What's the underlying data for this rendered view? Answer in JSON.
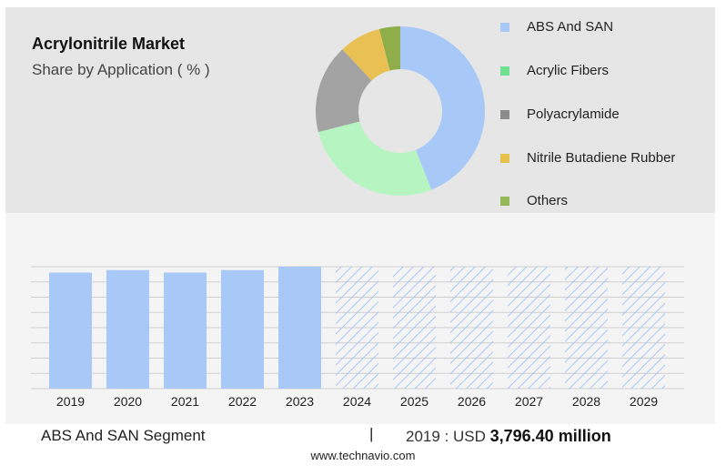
{
  "title": "Acrylonitrile Market",
  "subtitle": "Share by Application ( % )",
  "legend": [
    {
      "label": "ABS And SAN",
      "color": "#a8c8f8"
    },
    {
      "label": "Acrylic Fibers",
      "color": "#6fe08f"
    },
    {
      "label": "Polyacrylamide",
      "color": "#8c8c8c"
    },
    {
      "label": "Nitrile Butadiene Rubber",
      "color": "#e5c04a"
    },
    {
      "label": "Others",
      "color": "#93b85a"
    }
  ],
  "chart_data": [
    {
      "type": "pie",
      "donut": true,
      "labels": [
        "ABS And SAN",
        "Acrylic Fibers",
        "Polyacrylamide",
        "Nitrile Butadiene Rubber",
        "Others"
      ],
      "values": [
        44,
        27,
        17,
        8,
        4
      ],
      "colors": [
        "#a8c8f8",
        "#b6f4c1",
        "#a3a3a3",
        "#e9c054",
        "#8fae49"
      ]
    },
    {
      "type": "bar",
      "categories": [
        "2019",
        "2020",
        "2021",
        "2022",
        "2023",
        "2024",
        "2025",
        "2026",
        "2027",
        "2028",
        "2029"
      ],
      "values": [
        3796.4,
        3878,
        3796,
        3878,
        3990,
        3990,
        3990,
        3990,
        3990,
        3990,
        3990
      ],
      "forecast_from": "2024",
      "ylim": [
        0,
        3990
      ],
      "grid": true,
      "colors": {
        "actual": "#a8c8f8",
        "forecast_hatch": "#a8c8f8"
      }
    }
  ],
  "footer": {
    "segment": "ABS And SAN Segment",
    "divider": "|",
    "year_label": "2019 : USD",
    "value": "3,796.40 million",
    "website": "www.technavio.com"
  }
}
